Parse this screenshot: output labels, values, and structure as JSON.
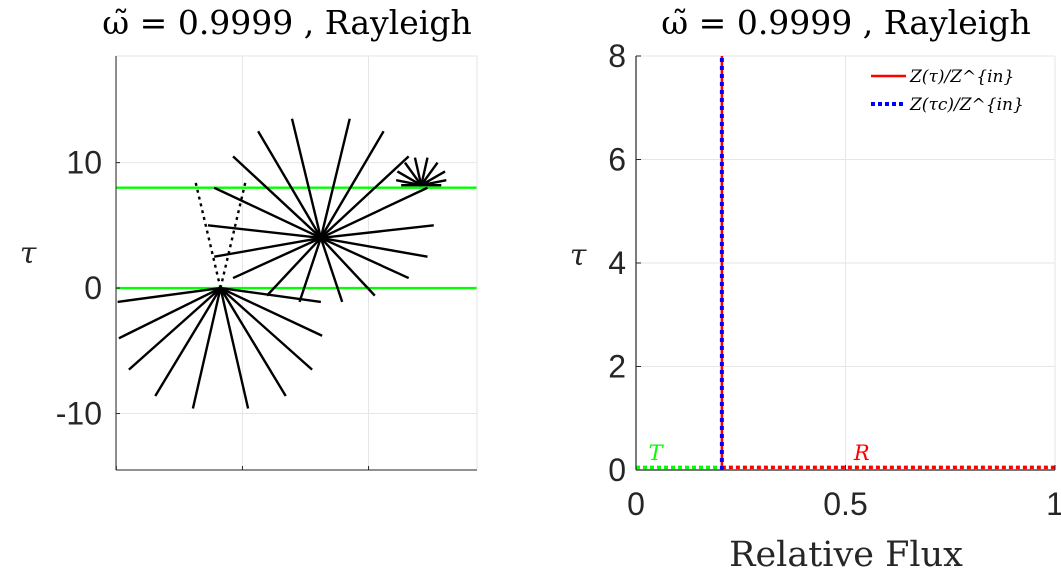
{
  "chart_data": [
    {
      "type": "line",
      "title": "ω̃ = 0.9999 , Rayleigh",
      "xlabel": "",
      "ylabel": "τ",
      "ylim": [
        -14.5,
        18.5
      ],
      "yticks": [
        {
          "value": 10,
          "label": "10"
        },
        {
          "value": 0,
          "label": "0"
        },
        {
          "value": -10,
          "label": "-10"
        }
      ],
      "xticks": [
        -8.3,
        1.75,
        11.8
      ],
      "grid": true,
      "colors": {
        "boundary": "#00ff00",
        "rays": "#000000"
      },
      "boundaries": [
        0,
        8
      ],
      "sources": [
        {
          "name": "incident",
          "x": 0,
          "y": 0,
          "style": "dotted",
          "rays": [
            {
              "dx": -2,
              "dy": 8.5
            },
            {
              "dx": 2,
              "dy": 8.5
            }
          ]
        },
        {
          "name": "scatter-1",
          "x": 0,
          "y": 0,
          "style": "solid",
          "rays": [
            {
              "dx": -8.2,
              "dy": -1.1
            },
            {
              "dx": -8.1,
              "dy": -4
            },
            {
              "dx": -7.3,
              "dy": -6.5
            },
            {
              "dx": -5.2,
              "dy": -8.6
            },
            {
              "dx": -2.2,
              "dy": -9.6
            },
            {
              "dx": 2.2,
              "dy": -9.6
            },
            {
              "dx": 5.2,
              "dy": -8.6
            },
            {
              "dx": 7.3,
              "dy": -6.5
            },
            {
              "dx": 8.1,
              "dy": -3.8
            },
            {
              "dx": 8,
              "dy": -1.1
            }
          ]
        },
        {
          "name": "scatter-2",
          "x": 8,
          "y": 4,
          "style": "solid",
          "rays": [
            {
              "dx": -2.3,
              "dy": 9.5
            },
            {
              "dx": 2.3,
              "dy": 9.5
            },
            {
              "dx": -5,
              "dy": 8.5
            },
            {
              "dx": 5,
              "dy": 8.5
            },
            {
              "dx": -7,
              "dy": 6.5
            },
            {
              "dx": 7,
              "dy": 6.5
            },
            {
              "dx": -8.5,
              "dy": 4
            },
            {
              "dx": 8.5,
              "dy": 4
            },
            {
              "dx": -9,
              "dy": 1
            },
            {
              "dx": 9,
              "dy": 1
            },
            {
              "dx": -8.5,
              "dy": -1.5
            },
            {
              "dx": 8.5,
              "dy": -1.5
            },
            {
              "dx": -7,
              "dy": -3.2
            },
            {
              "dx": 7,
              "dy": -3.2
            },
            {
              "dx": -4.3,
              "dy": -4.6
            },
            {
              "dx": 4.3,
              "dy": -4.6
            },
            {
              "dx": -1.7,
              "dy": -5.1
            },
            {
              "dx": 1.7,
              "dy": -5.1
            }
          ]
        },
        {
          "name": "scatter-3",
          "x": 16,
          "y": 8.2,
          "style": "solid",
          "rays": [
            {
              "dx": -0.5,
              "dy": 2.2
            },
            {
              "dx": 0.5,
              "dy": 2.2
            },
            {
              "dx": -1.3,
              "dy": 1.8
            },
            {
              "dx": 1.3,
              "dy": 1.8
            },
            {
              "dx": -1.9,
              "dy": 1.1
            },
            {
              "dx": 1.9,
              "dy": 1.1
            },
            {
              "dx": -2,
              "dy": 0.4
            },
            {
              "dx": 2,
              "dy": 0.4
            },
            {
              "dx": -1.6,
              "dy": 0
            },
            {
              "dx": 1.6,
              "dy": 0
            }
          ]
        }
      ]
    },
    {
      "type": "line",
      "title": "ω̃ = 0.9999 , Rayleigh",
      "xlabel": "Relative Flux",
      "ylabel": "τ",
      "xlim": [
        0,
        1
      ],
      "ylim": [
        0,
        8
      ],
      "xticks": [
        {
          "value": 0,
          "label": "0"
        },
        {
          "value": 0.5,
          "label": "0.5"
        },
        {
          "value": 1,
          "label": "1"
        }
      ],
      "yticks": [
        {
          "value": 0,
          "label": "0"
        },
        {
          "value": 2,
          "label": "2"
        },
        {
          "value": 4,
          "label": "4"
        },
        {
          "value": 6,
          "label": "6"
        },
        {
          "value": 8,
          "label": "8"
        }
      ],
      "grid": true,
      "legend_position": "top-right",
      "series": [
        {
          "name": "Z(τ)/Z^{in}",
          "color": "#ff0000",
          "style": "solid",
          "x": [
            0.205,
            0.205
          ],
          "y": [
            0,
            8
          ]
        },
        {
          "name": "Z(τc)/Z^{in}",
          "color": "#0000ff",
          "style": "dotted",
          "x": [
            0.205,
            0.205
          ],
          "y": [
            0,
            8
          ]
        }
      ],
      "regions": [
        {
          "label": "T",
          "color": "#00ff00",
          "x": [
            0,
            0.205
          ],
          "y": 0.05
        },
        {
          "label": "R",
          "color": "#ff0000",
          "x": [
            0.205,
            1
          ],
          "y": 0.05
        }
      ]
    }
  ]
}
